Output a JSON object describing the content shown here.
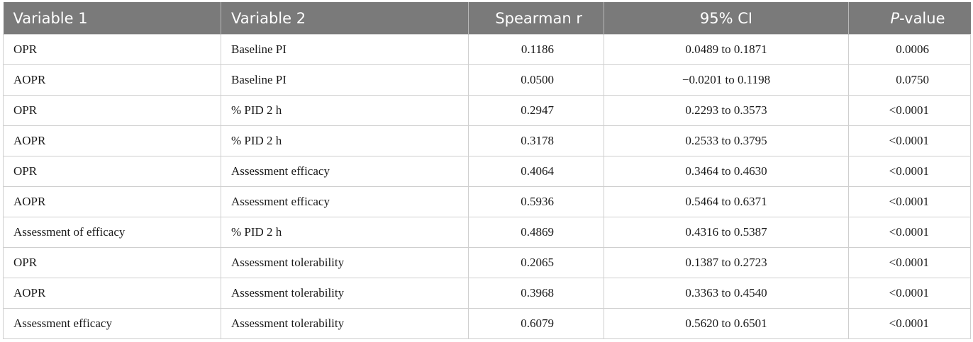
{
  "headers": {
    "var1": "Variable 1",
    "var2": "Variable 2",
    "spearman": "Spearman r",
    "ci": "95% CI",
    "p_italic": "P",
    "p_rest": "-value"
  },
  "rows": [
    {
      "v1": "OPR",
      "v2": "Baseline PI",
      "r": "0.1186",
      "ci": "0.0489 to 0.1871",
      "p": "0.0006"
    },
    {
      "v1": "AOPR",
      "v2": "Baseline PI",
      "r": "0.0500",
      "ci": "−0.0201 to 0.1198",
      "p": "0.0750"
    },
    {
      "v1": "OPR",
      "v2": "% PID 2 h",
      "r": "0.2947",
      "ci": "0.2293 to 0.3573",
      "p": "<0.0001"
    },
    {
      "v1": "AOPR",
      "v2": "% PID 2 h",
      "r": "0.3178",
      "ci": "0.2533 to 0.3795",
      "p": "<0.0001"
    },
    {
      "v1": "OPR",
      "v2": "Assessment efficacy",
      "r": "0.4064",
      "ci": "0.3464 to 0.4630",
      "p": "<0.0001"
    },
    {
      "v1": "AOPR",
      "v2": "Assessment efficacy",
      "r": "0.5936",
      "ci": "0.5464 to 0.6371",
      "p": "<0.0001"
    },
    {
      "v1": "Assessment of efficacy",
      "v2": "% PID 2 h",
      "r": "0.4869",
      "ci": "0.4316 to 0.5387",
      "p": "<0.0001"
    },
    {
      "v1": "OPR",
      "v2": "Assessment tolerability",
      "r": "0.2065",
      "ci": "0.1387 to 0.2723",
      "p": "<0.0001"
    },
    {
      "v1": "AOPR",
      "v2": "Assessment tolerability",
      "r": "0.3968",
      "ci": "0.3363 to 0.4540",
      "p": "<0.0001"
    },
    {
      "v1": "Assessment efficacy",
      "v2": "Assessment tolerability",
      "r": "0.6079",
      "ci": "0.5620 to 0.6501",
      "p": "<0.0001"
    }
  ]
}
